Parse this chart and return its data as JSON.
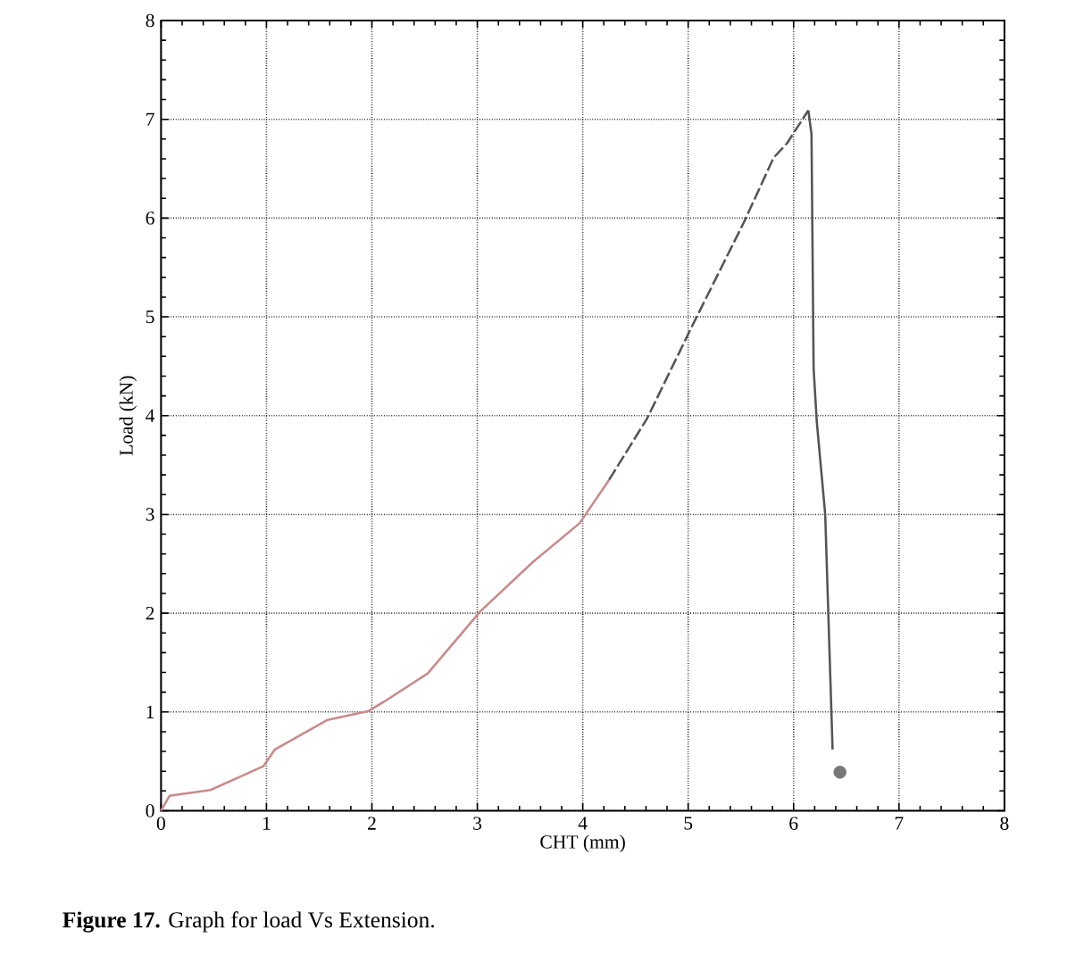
{
  "chart_data": {
    "type": "line",
    "xlabel": "CHT (mm)",
    "ylabel": "Load (kN)",
    "annotations": [
      "**Figure 17.** Graph for load Vs Extension."
    ],
    "xlim": [
      0,
      8
    ],
    "ylim": [
      0,
      8
    ],
    "xticks": [
      0,
      1,
      2,
      3,
      4,
      5,
      6,
      7,
      8
    ],
    "yticks": [
      0,
      1,
      2,
      3,
      4,
      5,
      6,
      7,
      8
    ],
    "grid": true,
    "series": [
      {
        "color": "#c98a8a",
        "line_style": "solid",
        "marker": "none",
        "x": [
          0,
          0.08,
          0.47,
          0.97,
          1.08,
          1.58,
          1.97,
          2.11,
          2.53,
          3.03,
          3.53,
          3.97,
          4.25
        ],
        "values": [
          0,
          0.15,
          0.21,
          0.45,
          0.62,
          0.92,
          1.01,
          1.1,
          1.39,
          2.02,
          2.52,
          2.91,
          3.35
        ]
      },
      {
        "color": "#555555",
        "line_style": "dashed",
        "marker": "none",
        "x": [
          4.25,
          4.61,
          5.03,
          5.53,
          5.81,
          5.94,
          6.03,
          6.14
        ],
        "values": [
          3.35,
          3.97,
          4.89,
          5.96,
          6.61,
          6.76,
          6.91,
          7.09
        ]
      },
      {
        "color": "#555555",
        "line_style": "solid",
        "marker": "none",
        "x": [
          6.14,
          6.17,
          6.19,
          6.22,
          6.3,
          6.37
        ],
        "values": [
          7.09,
          6.85,
          4.48,
          3.94,
          3.0,
          0.62
        ]
      },
      {
        "type": "scatter",
        "color": "#777777",
        "marker": "circle",
        "x": [
          6.44
        ],
        "values": [
          0.39
        ]
      }
    ]
  }
}
